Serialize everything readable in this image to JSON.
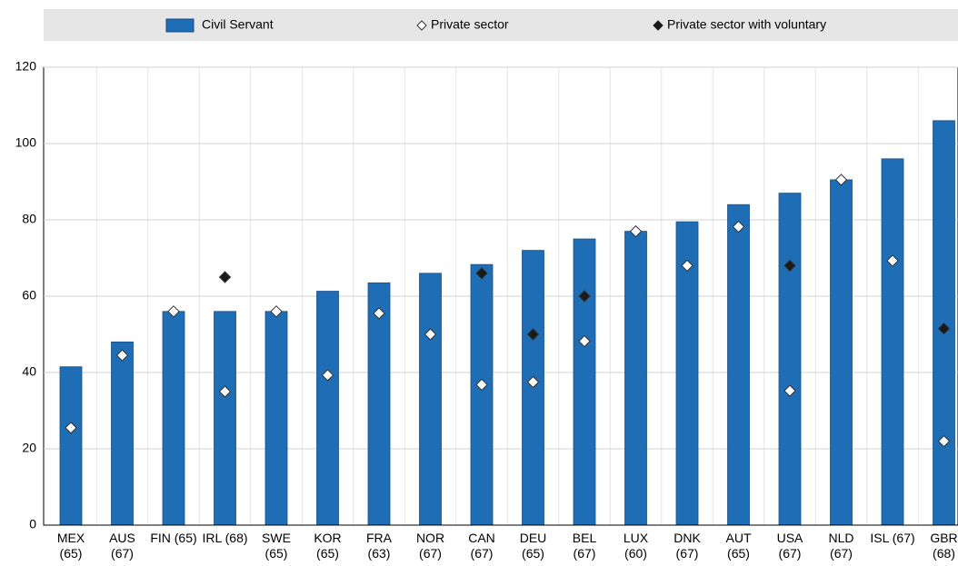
{
  "chart_data": {
    "type": "bar",
    "categories": [
      "MEX\n(65)",
      "AUS\n(67)",
      "FIN (65)",
      "IRL (68)",
      "SWE\n(65)",
      "KOR\n(65)",
      "FRA\n(63)",
      "NOR\n(67)",
      "CAN\n(67)",
      "DEU\n(65)",
      "BEL\n(67)",
      "LUX\n(60)",
      "DNK\n(67)",
      "AUT\n(65)",
      "USA\n(67)",
      "NLD\n(67)",
      "ISL (67)",
      "GBR\n(68)"
    ],
    "series": [
      {
        "name": "Civil Servant",
        "type": "bar",
        "color": "#1f6db4",
        "values": [
          41.5,
          48,
          56,
          56,
          56,
          61.3,
          63.5,
          66,
          68.3,
          72,
          75,
          77,
          79.5,
          84,
          87,
          90.5,
          96,
          106
        ]
      },
      {
        "name": "Private sector",
        "type": "scatter",
        "color": "#ffffff",
        "values": [
          25.5,
          44.5,
          56,
          35,
          56,
          39.3,
          55.5,
          50,
          36.8,
          37.5,
          48.2,
          77,
          68,
          78.2,
          35.2,
          90.5,
          69.3,
          22
        ]
      },
      {
        "name": "Private sector with voluntary",
        "type": "scatter",
        "color": "#1a1a1a",
        "values": [
          null,
          null,
          null,
          65,
          null,
          null,
          null,
          null,
          66,
          50,
          60,
          null,
          null,
          null,
          68,
          null,
          null,
          51.5
        ]
      }
    ],
    "ylim": [
      0,
      120
    ],
    "yticks": [
      0,
      20,
      40,
      60,
      80,
      100,
      120
    ],
    "grid": true
  }
}
